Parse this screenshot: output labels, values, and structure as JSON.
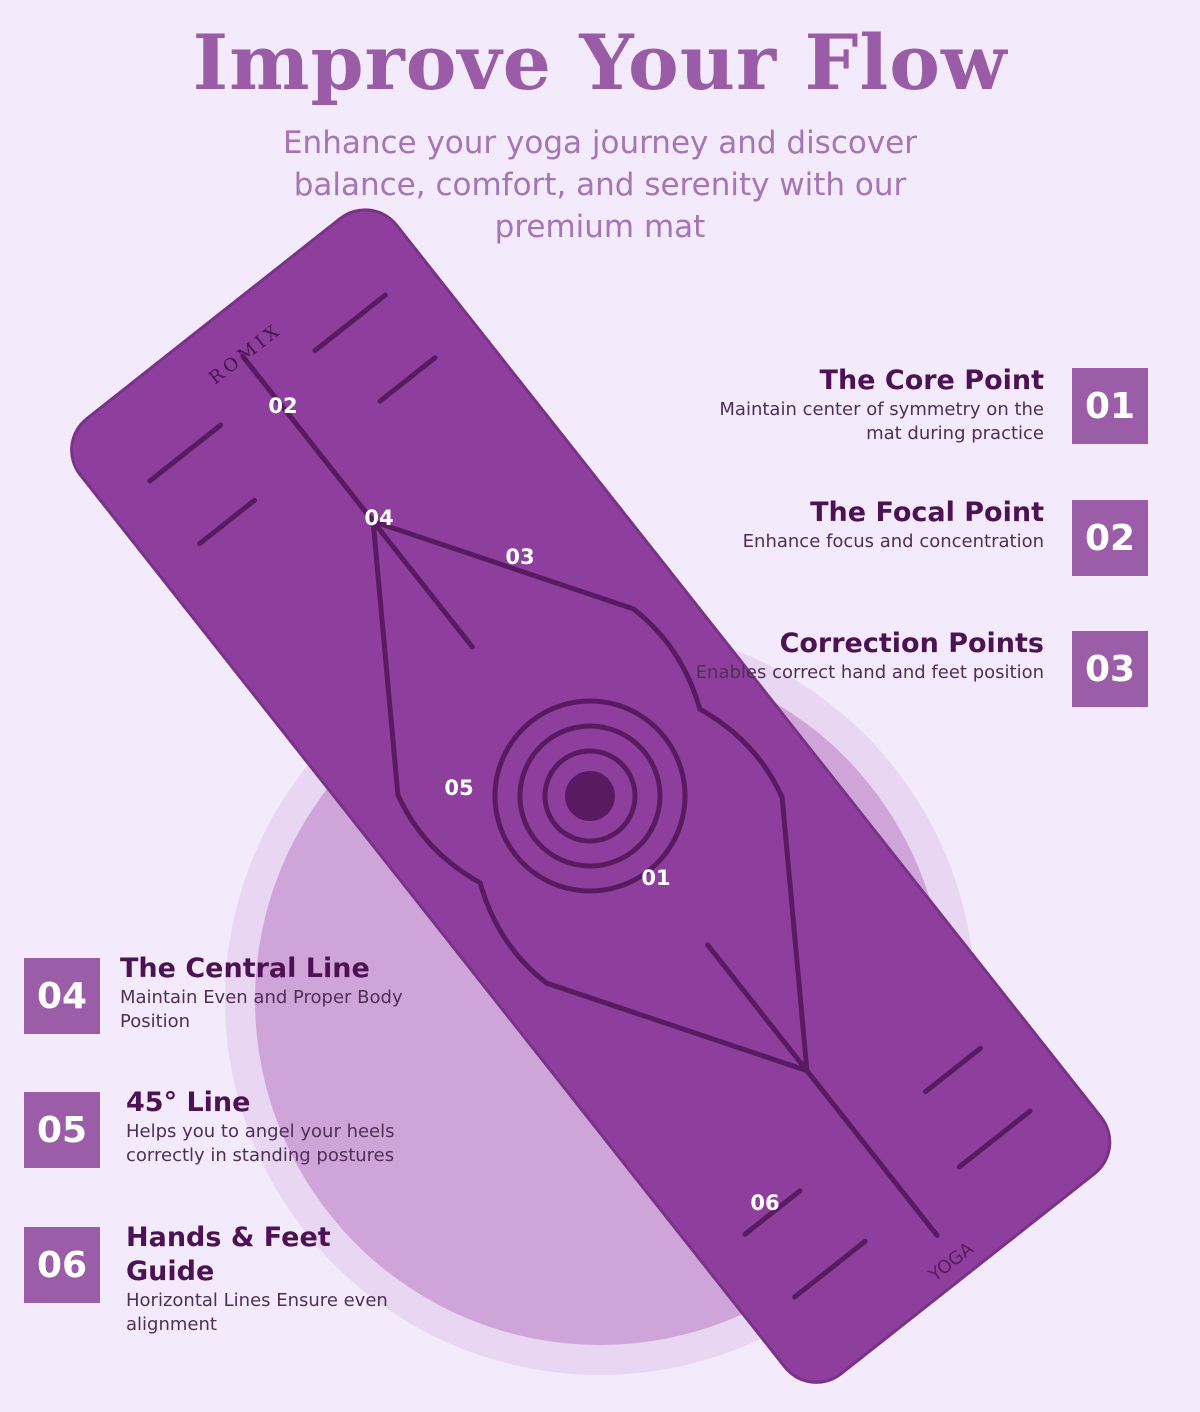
{
  "header": {
    "title": "Improve Your Flow",
    "subtitle": "Enhance your yoga journey and discover balance, comfort, and serenity with our premium mat"
  },
  "mat": {
    "brand": "ROMIX",
    "print": "YOGA",
    "markers": [
      "01",
      "02",
      "03",
      "04",
      "05",
      "06"
    ]
  },
  "features": [
    {
      "number": "01",
      "title": "The Core Point",
      "description": "Maintain center of symmetry on the mat during practice"
    },
    {
      "number": "02",
      "title": "The Focal Point",
      "description": "Enhance focus and concentration"
    },
    {
      "number": "03",
      "title": "Correction Points",
      "description": "Enables correct hand and feet position"
    },
    {
      "number": "04",
      "title": "The Central Line",
      "description": "Maintain Even and Proper Body Position"
    },
    {
      "number": "05",
      "title": "45° Line",
      "description": "Helps you to angel your heels correctly in standing postures"
    },
    {
      "number": "06",
      "title": "Hands & Feet Guide",
      "description": "Horizontal Lines Ensure even alignment"
    }
  ]
}
